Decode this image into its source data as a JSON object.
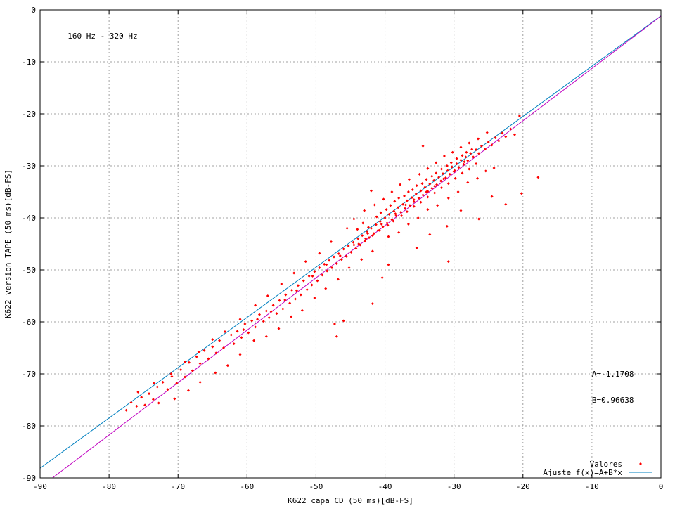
{
  "chart_data": {
    "type": "scatter",
    "title": "",
    "xlabel": "K622 capa CD (50 ms)[dB-FS]",
    "ylabel": "K622 version TAPE (50 ms)[dB-FS]",
    "xlim": [
      -90,
      0
    ],
    "ylim": [
      -90,
      0
    ],
    "xticks": [
      -90,
      -80,
      -70,
      -60,
      -50,
      -40,
      -30,
      -20,
      -10,
      0
    ],
    "yticks": [
      -90,
      -80,
      -70,
      -60,
      -50,
      -40,
      -30,
      -20,
      -10,
      0
    ],
    "grid": true,
    "legend_position": "bottom-right",
    "annotations": [
      {
        "text": "160 Hz - 320 Hz",
        "x": -86,
        "y": -5
      },
      {
        "text": "A=-1.1708",
        "x": -10,
        "y": -70
      },
      {
        "text": "B=0.96638",
        "x": -10,
        "y": -75
      }
    ],
    "series": [
      {
        "name": "Valores",
        "kind": "points",
        "color": "#ff0000",
        "points": [
          [
            -77.5,
            -77.0
          ],
          [
            -76.8,
            -75.5
          ],
          [
            -76.0,
            -76.2
          ],
          [
            -75.3,
            -74.5
          ],
          [
            -74.8,
            -76.0
          ],
          [
            -74.2,
            -73.8
          ],
          [
            -73.6,
            -74.9
          ],
          [
            -73.0,
            -72.5
          ],
          [
            -72.8,
            -75.6
          ],
          [
            -72.2,
            -71.6
          ],
          [
            -71.5,
            -73.0
          ],
          [
            -70.9,
            -70.5
          ],
          [
            -70.2,
            -71.8
          ],
          [
            -69.6,
            -69.2
          ],
          [
            -69.0,
            -70.6
          ],
          [
            -68.4,
            -67.8
          ],
          [
            -67.9,
            -69.4
          ],
          [
            -67.3,
            -66.7
          ],
          [
            -66.8,
            -68.0
          ],
          [
            -66.2,
            -65.5
          ],
          [
            -65.6,
            -67.1
          ],
          [
            -65.0,
            -64.8
          ],
          [
            -64.5,
            -66.0
          ],
          [
            -64.0,
            -63.6
          ],
          [
            -63.4,
            -65.0
          ],
          [
            -62.8,
            -68.4
          ],
          [
            -62.3,
            -62.5
          ],
          [
            -61.9,
            -64.2
          ],
          [
            -61.4,
            -61.8
          ],
          [
            -60.8,
            -63.0
          ],
          [
            -60.3,
            -60.4
          ],
          [
            -59.8,
            -62.1
          ],
          [
            -59.3,
            -59.8
          ],
          [
            -58.8,
            -61.0
          ],
          [
            -58.2,
            -58.6
          ],
          [
            -57.6,
            -59.9
          ],
          [
            -57.2,
            -57.9
          ],
          [
            -56.8,
            -59.2
          ],
          [
            -56.2,
            -56.8
          ],
          [
            -55.7,
            -58.4
          ],
          [
            -55.3,
            -55.9
          ],
          [
            -54.8,
            -57.5
          ],
          [
            -54.4,
            -54.8
          ],
          [
            -53.8,
            -56.4
          ],
          [
            -53.5,
            -53.9
          ],
          [
            -53.0,
            -55.6
          ],
          [
            -52.6,
            -53.0
          ],
          [
            -52.2,
            -54.8
          ],
          [
            -51.8,
            -52.1
          ],
          [
            -51.3,
            -53.8
          ],
          [
            -51.0,
            -51.2
          ],
          [
            -50.6,
            -52.9
          ],
          [
            -50.2,
            -50.3
          ],
          [
            -49.8,
            -52.1
          ],
          [
            -49.5,
            -49.6
          ],
          [
            -49.1,
            -51.0
          ],
          [
            -48.8,
            -48.9
          ],
          [
            -48.4,
            -50.2
          ],
          [
            -48.1,
            -48.2
          ],
          [
            -47.7,
            -49.6
          ],
          [
            -47.4,
            -47.5
          ],
          [
            -47.0,
            -48.8
          ],
          [
            -46.7,
            -46.9
          ],
          [
            -46.3,
            -48.0
          ],
          [
            -46.0,
            -46.0
          ],
          [
            -45.6,
            -47.4
          ],
          [
            -45.3,
            -45.4
          ],
          [
            -44.9,
            -46.6
          ],
          [
            -44.6,
            -44.7
          ],
          [
            -44.2,
            -45.9
          ],
          [
            -43.9,
            -44.0
          ],
          [
            -43.6,
            -45.2
          ],
          [
            -43.3,
            -43.4
          ],
          [
            -42.9,
            -44.5
          ],
          [
            -42.6,
            -42.6
          ],
          [
            -42.3,
            -43.8
          ],
          [
            -42.0,
            -42.0
          ],
          [
            -41.6,
            -43.0
          ],
          [
            -41.3,
            -41.3
          ],
          [
            -41.0,
            -42.4
          ],
          [
            -40.7,
            -40.7
          ],
          [
            -40.3,
            -41.7
          ],
          [
            -40.0,
            -40.0
          ],
          [
            -39.7,
            -41.0
          ],
          [
            -39.4,
            -39.3
          ],
          [
            -39.0,
            -40.3
          ],
          [
            -38.7,
            -38.7
          ],
          [
            -38.4,
            -39.6
          ],
          [
            -38.1,
            -38.0
          ],
          [
            -37.7,
            -38.9
          ],
          [
            -37.4,
            -37.4
          ],
          [
            -37.1,
            -38.2
          ],
          [
            -36.8,
            -36.7
          ],
          [
            -36.4,
            -37.6
          ],
          [
            -36.1,
            -36.1
          ],
          [
            -35.8,
            -36.9
          ],
          [
            -35.5,
            -35.4
          ],
          [
            -35.1,
            -36.2
          ],
          [
            -34.8,
            -34.8
          ],
          [
            -34.5,
            -35.6
          ],
          [
            -34.2,
            -34.1
          ],
          [
            -33.8,
            -34.9
          ],
          [
            -33.5,
            -33.5
          ],
          [
            -33.2,
            -34.3
          ],
          [
            -32.9,
            -32.8
          ],
          [
            -32.5,
            -33.6
          ],
          [
            -32.2,
            -32.2
          ],
          [
            -31.9,
            -32.9
          ],
          [
            -31.6,
            -31.5
          ],
          [
            -31.2,
            -32.3
          ],
          [
            -30.9,
            -30.9
          ],
          [
            -30.6,
            -31.6
          ],
          [
            -30.3,
            -30.2
          ],
          [
            -29.9,
            -30.9
          ],
          [
            -29.6,
            -29.6
          ],
          [
            -29.3,
            -30.3
          ],
          [
            -29.0,
            -28.9
          ],
          [
            -28.6,
            -29.7
          ],
          [
            -28.3,
            -28.3
          ],
          [
            -28.0,
            -29.0
          ],
          [
            -27.6,
            -27.6
          ],
          [
            -27.2,
            -28.3
          ],
          [
            -26.8,
            -26.9
          ],
          [
            -26.4,
            -27.6
          ],
          [
            -26.0,
            -26.2
          ],
          [
            -25.5,
            -26.8
          ],
          [
            -25.0,
            -25.4
          ],
          [
            -24.5,
            -26.0
          ],
          [
            -24.0,
            -24.6
          ],
          [
            -23.5,
            -25.2
          ],
          [
            -23.0,
            -23.7
          ],
          [
            -22.5,
            -24.4
          ],
          [
            -21.8,
            -22.9
          ],
          [
            -21.2,
            -24.0
          ],
          [
            -20.5,
            -20.4
          ],
          [
            -44.5,
            -40.2
          ],
          [
            -43.0,
            -38.6
          ],
          [
            -41.5,
            -37.5
          ],
          [
            -40.2,
            -36.4
          ],
          [
            -39.0,
            -35.0
          ],
          [
            -37.8,
            -33.6
          ],
          [
            -36.5,
            -32.6
          ],
          [
            -35.0,
            -31.6
          ],
          [
            -33.8,
            -30.5
          ],
          [
            -32.6,
            -29.4
          ],
          [
            -31.4,
            -28.1
          ],
          [
            -30.2,
            -27.4
          ],
          [
            -29.0,
            -26.4
          ],
          [
            -27.8,
            -25.6
          ],
          [
            -26.5,
            -24.8
          ],
          [
            -25.2,
            -23.6
          ],
          [
            -34.5,
            -26.2
          ],
          [
            -42.0,
            -34.8
          ],
          [
            -45.5,
            -42.0
          ],
          [
            -47.8,
            -44.6
          ],
          [
            -49.5,
            -46.8
          ],
          [
            -51.5,
            -48.4
          ],
          [
            -53.2,
            -50.6
          ],
          [
            -55.0,
            -52.7
          ],
          [
            -57.0,
            -55.0
          ],
          [
            -58.8,
            -56.8
          ],
          [
            -61.0,
            -59.5
          ],
          [
            -63.2,
            -61.9
          ],
          [
            -65.0,
            -63.4
          ],
          [
            -67.0,
            -65.8
          ],
          [
            -69.0,
            -67.7
          ],
          [
            -71.0,
            -70.0
          ],
          [
            -73.5,
            -71.8
          ],
          [
            -75.8,
            -73.5
          ],
          [
            -39.5,
            -43.6
          ],
          [
            -38.0,
            -42.8
          ],
          [
            -36.6,
            -41.2
          ],
          [
            -35.2,
            -40.0
          ],
          [
            -33.8,
            -38.4
          ],
          [
            -32.4,
            -37.6
          ],
          [
            -30.8,
            -36.2
          ],
          [
            -29.4,
            -35.0
          ],
          [
            -28.0,
            -33.2
          ],
          [
            -26.6,
            -32.4
          ],
          [
            -25.4,
            -31.0
          ],
          [
            -24.2,
            -30.4
          ],
          [
            -41.8,
            -46.4
          ],
          [
            -43.4,
            -48.0
          ],
          [
            -45.2,
            -49.6
          ],
          [
            -46.8,
            -51.8
          ],
          [
            -48.6,
            -53.6
          ],
          [
            -50.2,
            -55.4
          ],
          [
            -52.0,
            -57.8
          ],
          [
            -53.6,
            -59.0
          ],
          [
            -55.4,
            -61.3
          ],
          [
            -57.2,
            -62.8
          ],
          [
            -59.0,
            -63.6
          ],
          [
            -61.0,
            -66.3
          ],
          [
            -62.8,
            -68.4
          ],
          [
            -64.6,
            -69.8
          ],
          [
            -66.8,
            -71.6
          ],
          [
            -68.5,
            -73.2
          ],
          [
            -70.5,
            -74.8
          ],
          [
            -20.2,
            -35.3
          ],
          [
            -22.5,
            -37.4
          ],
          [
            -24.5,
            -35.9
          ],
          [
            -17.8,
            -32.2
          ],
          [
            -26.4,
            -40.2
          ],
          [
            -30.8,
            -48.4
          ],
          [
            -31.0,
            -41.6
          ],
          [
            -40.4,
            -51.5
          ],
          [
            -41.8,
            -56.5
          ],
          [
            -47.3,
            -60.4
          ],
          [
            -47.0,
            -62.8
          ],
          [
            -46.0,
            -59.8
          ],
          [
            -39.5,
            -49.0
          ],
          [
            -35.4,
            -45.8
          ],
          [
            -33.5,
            -43.2
          ],
          [
            -29.0,
            -38.6
          ],
          [
            -44.0,
            -42.2
          ],
          [
            -43.2,
            -41.0
          ],
          [
            -42.4,
            -41.8
          ],
          [
            -41.2,
            -39.8
          ],
          [
            -40.6,
            -39.0
          ],
          [
            -39.8,
            -38.4
          ],
          [
            -39.2,
            -37.6
          ],
          [
            -38.6,
            -36.8
          ],
          [
            -38.0,
            -36.2
          ],
          [
            -37.2,
            -35.8
          ],
          [
            -36.6,
            -35.0
          ],
          [
            -36.0,
            -34.6
          ],
          [
            -35.4,
            -33.8
          ],
          [
            -34.6,
            -33.4
          ],
          [
            -34.0,
            -32.6
          ],
          [
            -33.2,
            -32.0
          ],
          [
            -32.6,
            -31.4
          ],
          [
            -31.8,
            -30.6
          ],
          [
            -31.0,
            -30.0
          ],
          [
            -30.4,
            -29.4
          ],
          [
            -29.6,
            -28.6
          ],
          [
            -28.8,
            -28.0
          ],
          [
            -28.2,
            -27.4
          ],
          [
            -27.4,
            -26.8
          ],
          [
            -43.8,
            -45.0
          ],
          [
            -42.8,
            -44.0
          ],
          [
            -41.8,
            -43.4
          ],
          [
            -40.8,
            -42.4
          ],
          [
            -39.6,
            -41.4
          ],
          [
            -38.8,
            -40.6
          ],
          [
            -37.6,
            -39.6
          ],
          [
            -36.8,
            -38.8
          ],
          [
            -35.8,
            -37.8
          ],
          [
            -34.8,
            -37.0
          ],
          [
            -33.8,
            -36.0
          ],
          [
            -32.8,
            -35.2
          ],
          [
            -31.8,
            -34.2
          ],
          [
            -30.8,
            -33.4
          ],
          [
            -29.8,
            -32.4
          ],
          [
            -28.8,
            -31.4
          ],
          [
            -27.8,
            -30.6
          ],
          [
            -26.8,
            -29.6
          ],
          [
            -38.5,
            -39.2
          ],
          [
            -37.0,
            -37.5
          ],
          [
            -35.8,
            -36.5
          ],
          [
            -34.0,
            -35.0
          ],
          [
            -32.8,
            -33.9
          ],
          [
            -31.5,
            -32.5
          ],
          [
            -30.0,
            -31.1
          ],
          [
            -28.5,
            -29.2
          ],
          [
            -40.5,
            -41.2
          ],
          [
            -42.5,
            -43.0
          ],
          [
            -44.5,
            -45.2
          ],
          [
            -46.5,
            -47.3
          ],
          [
            -48.5,
            -49.0
          ],
          [
            -50.5,
            -51.2
          ],
          [
            -52.8,
            -54.0
          ],
          [
            -54.5,
            -55.8
          ],
          [
            -56.5,
            -58.0
          ],
          [
            -58.5,
            -59.5
          ],
          [
            -60.5,
            -61.5
          ]
        ]
      },
      {
        "name": "Ajuste f(x)=A+B*x",
        "kind": "line",
        "color": "#0080c0",
        "x": [
          -90,
          0
        ],
        "y": [
          -88.14,
          -1.17
        ]
      },
      {
        "kind": "line",
        "color": "#c000c0",
        "x": [
          -88.2,
          0
        ],
        "y": [
          -90.0,
          -1.2
        ]
      }
    ]
  }
}
